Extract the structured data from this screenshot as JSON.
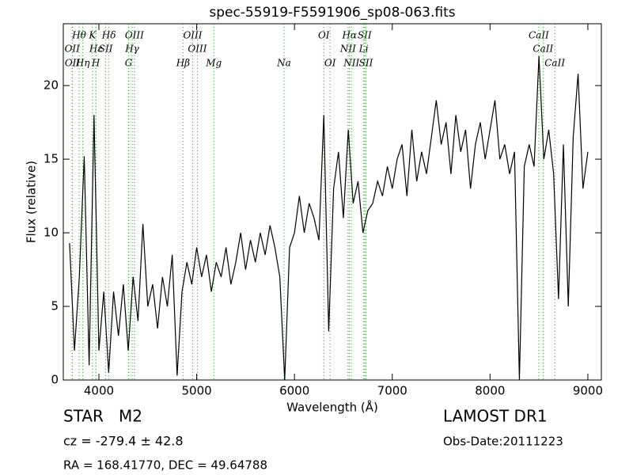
{
  "chart_data": {
    "type": "line",
    "title": "spec-55919-F5591906_sp08-063.fits",
    "xlabel": "Wavelength (Å)",
    "ylabel": "Flux (relative)",
    "object_class": "STAR   M2",
    "redshift": "cz = -279.4 ± 42.8",
    "coordinates": "RA = 168.41770, DEC = 49.64788",
    "survey": "LAMOST DR1",
    "obs_date": "Obs-Date:20111223",
    "color": "#000000",
    "line_color": "#3a9a3a",
    "xlim": [
      3636,
      9138
    ],
    "ylim": [
      0,
      24.2
    ],
    "xticks": [
      4000,
      5000,
      6000,
      7000,
      8000,
      9000
    ],
    "yticks": [
      0,
      5,
      10,
      15,
      20
    ],
    "x": [
      3700,
      3750,
      3800,
      3850,
      3900,
      3950,
      4000,
      4050,
      4100,
      4150,
      4200,
      4250,
      4300,
      4350,
      4400,
      4450,
      4500,
      4550,
      4600,
      4650,
      4700,
      4750,
      4800,
      4850,
      4900,
      4950,
      5000,
      5050,
      5100,
      5150,
      5200,
      5250,
      5300,
      5350,
      5400,
      5450,
      5500,
      5550,
      5600,
      5650,
      5700,
      5750,
      5800,
      5850,
      5900,
      5950,
      6000,
      6050,
      6100,
      6150,
      6200,
      6250,
      6300,
      6350,
      6400,
      6450,
      6500,
      6550,
      6600,
      6650,
      6700,
      6750,
      6800,
      6850,
      6900,
      6950,
      7000,
      7050,
      7100,
      7150,
      7200,
      7250,
      7300,
      7350,
      7400,
      7450,
      7500,
      7550,
      7600,
      7650,
      7700,
      7750,
      7800,
      7850,
      7900,
      7950,
      8000,
      8050,
      8100,
      8150,
      8200,
      8250,
      8300,
      8350,
      8400,
      8450,
      8500,
      8550,
      8600,
      8650,
      8700,
      8750,
      8800,
      8850,
      8900,
      8950,
      9000
    ],
    "values": [
      9.3,
      2,
      7,
      15.2,
      1,
      18,
      2,
      6,
      0.5,
      6,
      3,
      6.5,
      2,
      7,
      4,
      10.6,
      5,
      6.5,
      3.5,
      7,
      5,
      8.5,
      0.3,
      6,
      8,
      6.5,
      9,
      7,
      8.5,
      6,
      8,
      7,
      9,
      6.5,
      8,
      10,
      7.5,
      9.5,
      8,
      10,
      8.5,
      10.5,
      9,
      7,
      0,
      9,
      10,
      12.5,
      10,
      12,
      11,
      9.5,
      18,
      3.3,
      13,
      15.5,
      11,
      17,
      12,
      13.5,
      10,
      11.5,
      12,
      13.5,
      12.5,
      14.5,
      13,
      15,
      16,
      12.5,
      17,
      13.5,
      15.5,
      14,
      16.5,
      19,
      16,
      17.5,
      14,
      18,
      15.5,
      17,
      13,
      16,
      17.5,
      15,
      17,
      19,
      15,
      16,
      14,
      15.5,
      0,
      14.5,
      16,
      14.5,
      22,
      15,
      17,
      14,
      5.5,
      16,
      5,
      16.5,
      20.8,
      13,
      15.5
    ],
    "spectral_lines": [
      [
        {
          "label": "Hθ",
          "wavelength": 3798
        },
        {
          "label": "K",
          "wavelength": 3934
        },
        {
          "label": "Hδ",
          "wavelength": 4102
        },
        {
          "label": "OIII",
          "wavelength": 4363
        },
        {
          "label": "OIII",
          "wavelength": 4959
        },
        {
          "label": "OI",
          "wavelength": 6300
        },
        {
          "label": "Hα",
          "wavelength": 6563
        },
        {
          "label": "SII",
          "wavelength": 6717
        },
        {
          "label": "CaII",
          "wavelength": 8498
        }
      ],
      [
        {
          "label": "OII",
          "wavelength": 3727
        },
        {
          "label": "Hε",
          "wavelength": 3970
        },
        {
          "label": "SII",
          "wavelength": 4070
        },
        {
          "label": "Hγ",
          "wavelength": 4340
        },
        {
          "label": "OIII",
          "wavelength": 5007
        },
        {
          "label": "NII",
          "wavelength": 6548
        },
        {
          "label": "Li",
          "wavelength": 6708
        },
        {
          "label": "CaII",
          "wavelength": 8542
        }
      ],
      [
        {
          "label": "OII",
          "wavelength": 3729
        },
        {
          "label": "Hη",
          "wavelength": 3835
        },
        {
          "label": "H",
          "wavelength": 3969
        },
        {
          "label": "G",
          "wavelength": 4304
        },
        {
          "label": "Hβ",
          "wavelength": 4861
        },
        {
          "label": "Mg",
          "wavelength": 5175
        },
        {
          "label": "Na",
          "wavelength": 5893
        },
        {
          "label": "OI",
          "wavelength": 6364
        },
        {
          "label": "NII",
          "wavelength": 6583
        },
        {
          "label": "SII",
          "wavelength": 6731
        },
        {
          "label": "CaII",
          "wavelength": 8662
        }
      ]
    ]
  }
}
